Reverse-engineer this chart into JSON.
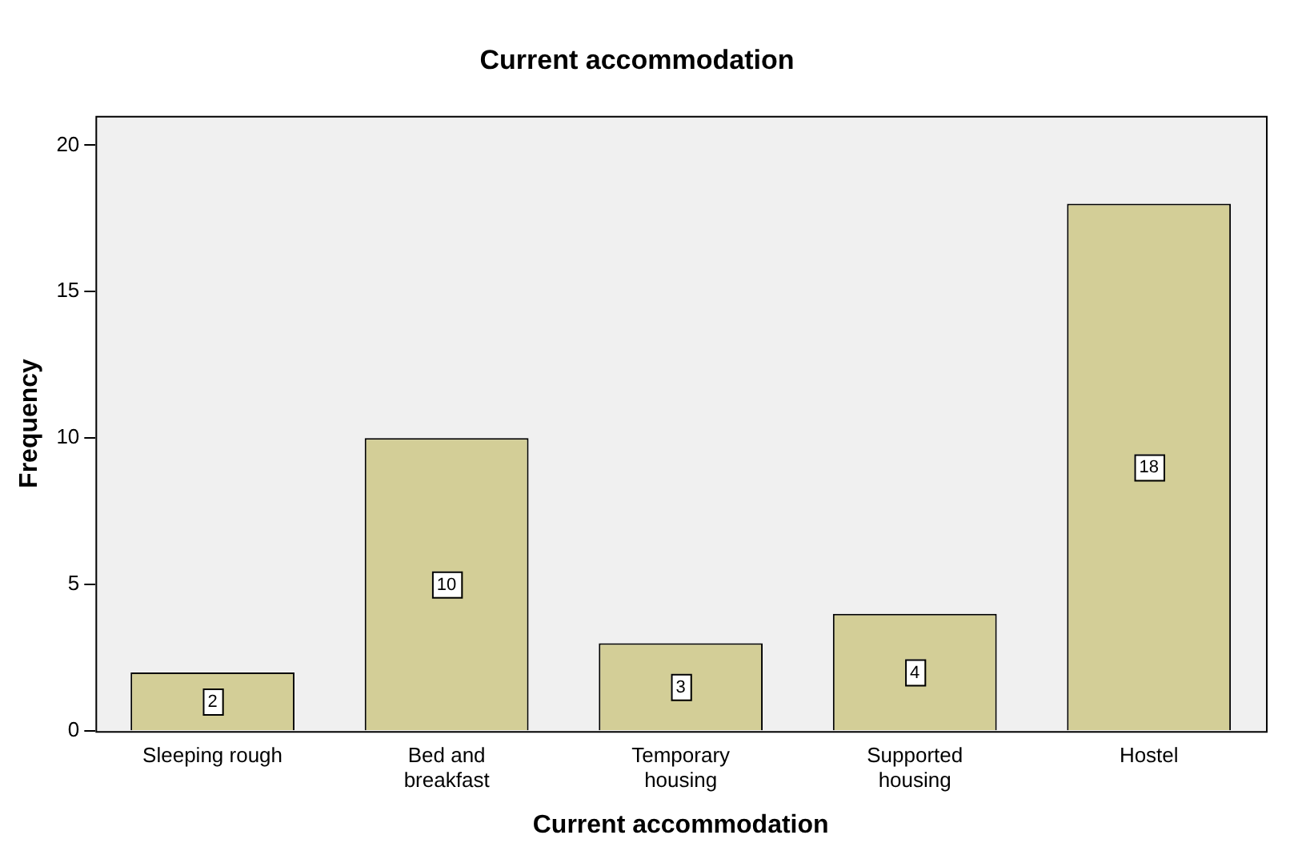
{
  "chart_data": {
    "type": "bar",
    "title": "Current accommodation",
    "xlabel": "Current accommodation",
    "ylabel": "Frequency",
    "categories": [
      "Sleeping rough",
      "Bed and breakfast",
      "Temporary housing",
      "Supported housing",
      "Hostel"
    ],
    "values": [
      2,
      10,
      3,
      4,
      18
    ],
    "color": "#d3ce97",
    "ylim": [
      0,
      21
    ],
    "yticks": [
      0,
      5,
      10,
      15,
      20
    ],
    "grid": false,
    "legend": false,
    "data_labels": true
  }
}
